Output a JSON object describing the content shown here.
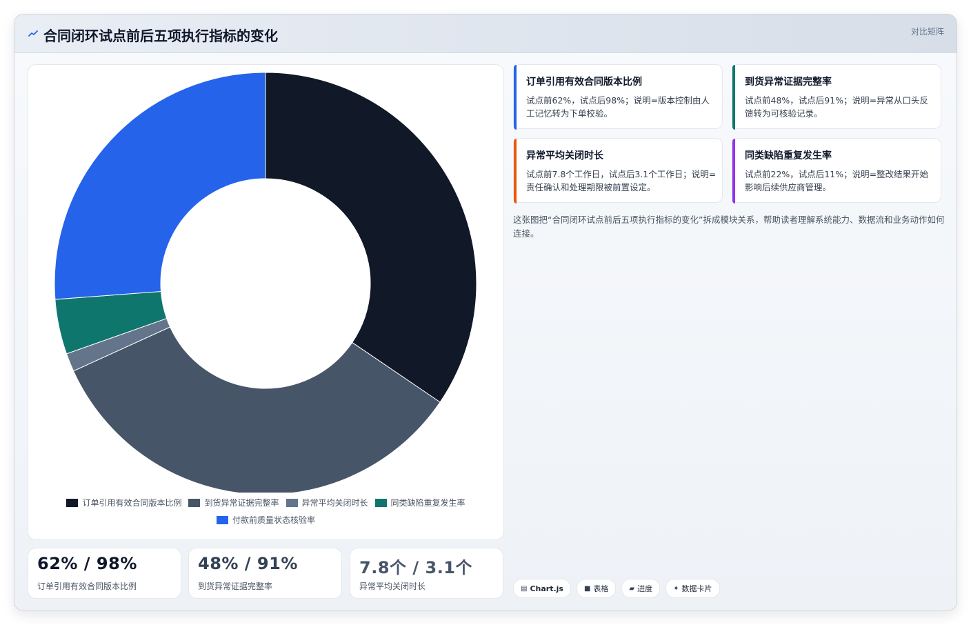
{
  "header": {
    "icon": "trend-line-icon",
    "title": "合同闭环试点前后五项执行指标的变化",
    "tag": "对比矩阵"
  },
  "chart_data": {
    "type": "pie",
    "variant": "donut",
    "labels": [
      "订单引用有效合同版本比例",
      "到货异常证据完整率",
      "异常平均关闭时长",
      "同类缺陷重复发生率",
      "付款前质量状态核验率"
    ],
    "values": [
      34.5,
      33.7,
      1.4,
      4.2,
      26.2
    ],
    "colors": [
      "#111827",
      "#475569",
      "#64748b",
      "#0f766e",
      "#2563eb"
    ],
    "legend_position": "bottom"
  },
  "stats": [
    {
      "value": "62% / 98%",
      "label": "订单引用有效合同版本比例"
    },
    {
      "value": "48% / 91%",
      "label": "到货异常证据完整率"
    },
    {
      "value": "7.8个 / 3.1个",
      "label": "异常平均关闭时长"
    }
  ],
  "metrics": [
    {
      "title": "订单引用有效合同版本比例",
      "desc": "试点前62%，试点后98%；说明=版本控制由人工记忆转为下单校验。",
      "color": "#2563eb"
    },
    {
      "title": "到货异常证据完整率",
      "desc": "试点前48%，试点后91%；说明=异常从口头反馈转为可核验记录。",
      "color": "#0f766e"
    },
    {
      "title": "异常平均关闭时长",
      "desc": "试点前7.8个工作日，试点后3.1个工作日；说明=责任确认和处理期限被前置设定。",
      "color": "#ea580c"
    },
    {
      "title": "同类缺陷重复发生率",
      "desc": "试点前22%，试点后11%；说明=整改结果开始影响后续供应商管理。",
      "color": "#9333ea"
    }
  ],
  "description": "这张图把“合同闭环试点前后五项执行指标的变化”拆成模块关系，帮助读者理解系统能力、数据流和业务动作如何连接。",
  "chips": [
    {
      "icon": "chart-icon",
      "glyph": "▤",
      "label": "Chart.js"
    },
    {
      "icon": "table-icon",
      "glyph": "■",
      "label": "表格"
    },
    {
      "icon": "progress-icon",
      "glyph": "▰",
      "label": "进度"
    },
    {
      "icon": "card-icon",
      "glyph": "✦",
      "label": "数据卡片"
    }
  ]
}
